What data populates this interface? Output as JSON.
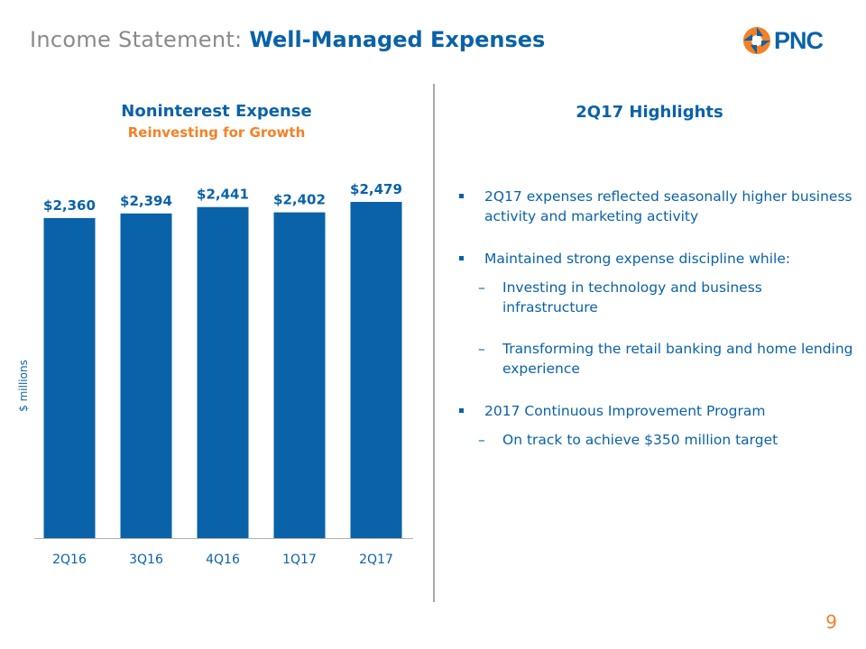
{
  "slide": {
    "title_prefix": "Income Statement: ",
    "title_emphasis": "Well-Managed Expenses",
    "logo_text": "PNC",
    "page_number": "9"
  },
  "colors": {
    "brand_blue": "#0a62a8",
    "brand_orange": "#f58025",
    "gray": "#8a8a8a"
  },
  "chart_data": {
    "type": "bar",
    "title": "Noninterest Expense",
    "subtitle": "Reinvesting for Growth",
    "ylabel": "$ millions",
    "xlabel": "",
    "categories": [
      "2Q16",
      "3Q16",
      "4Q16",
      "1Q17",
      "2Q17"
    ],
    "values": [
      2360,
      2394,
      2441,
      2402,
      2479
    ],
    "data_labels": [
      "$2,360",
      "$2,394",
      "$2,441",
      "$2,402",
      "$2,479"
    ],
    "ylim": [
      0,
      2479
    ],
    "grid": false,
    "bar_color": "#0a62a8"
  },
  "highlights": {
    "title": "2Q17 Highlights",
    "items": [
      {
        "text": "2Q17 expenses reflected seasonally higher business activity and marketing activity",
        "sub": []
      },
      {
        "text": "Maintained strong expense discipline while:",
        "sub": [
          "Investing in technology and business infrastructure",
          "Transforming the retail banking and home lending experience"
        ]
      },
      {
        "text": "2017 Continuous Improvement Program",
        "sub": [
          "On track to achieve $350 million target"
        ]
      }
    ]
  }
}
